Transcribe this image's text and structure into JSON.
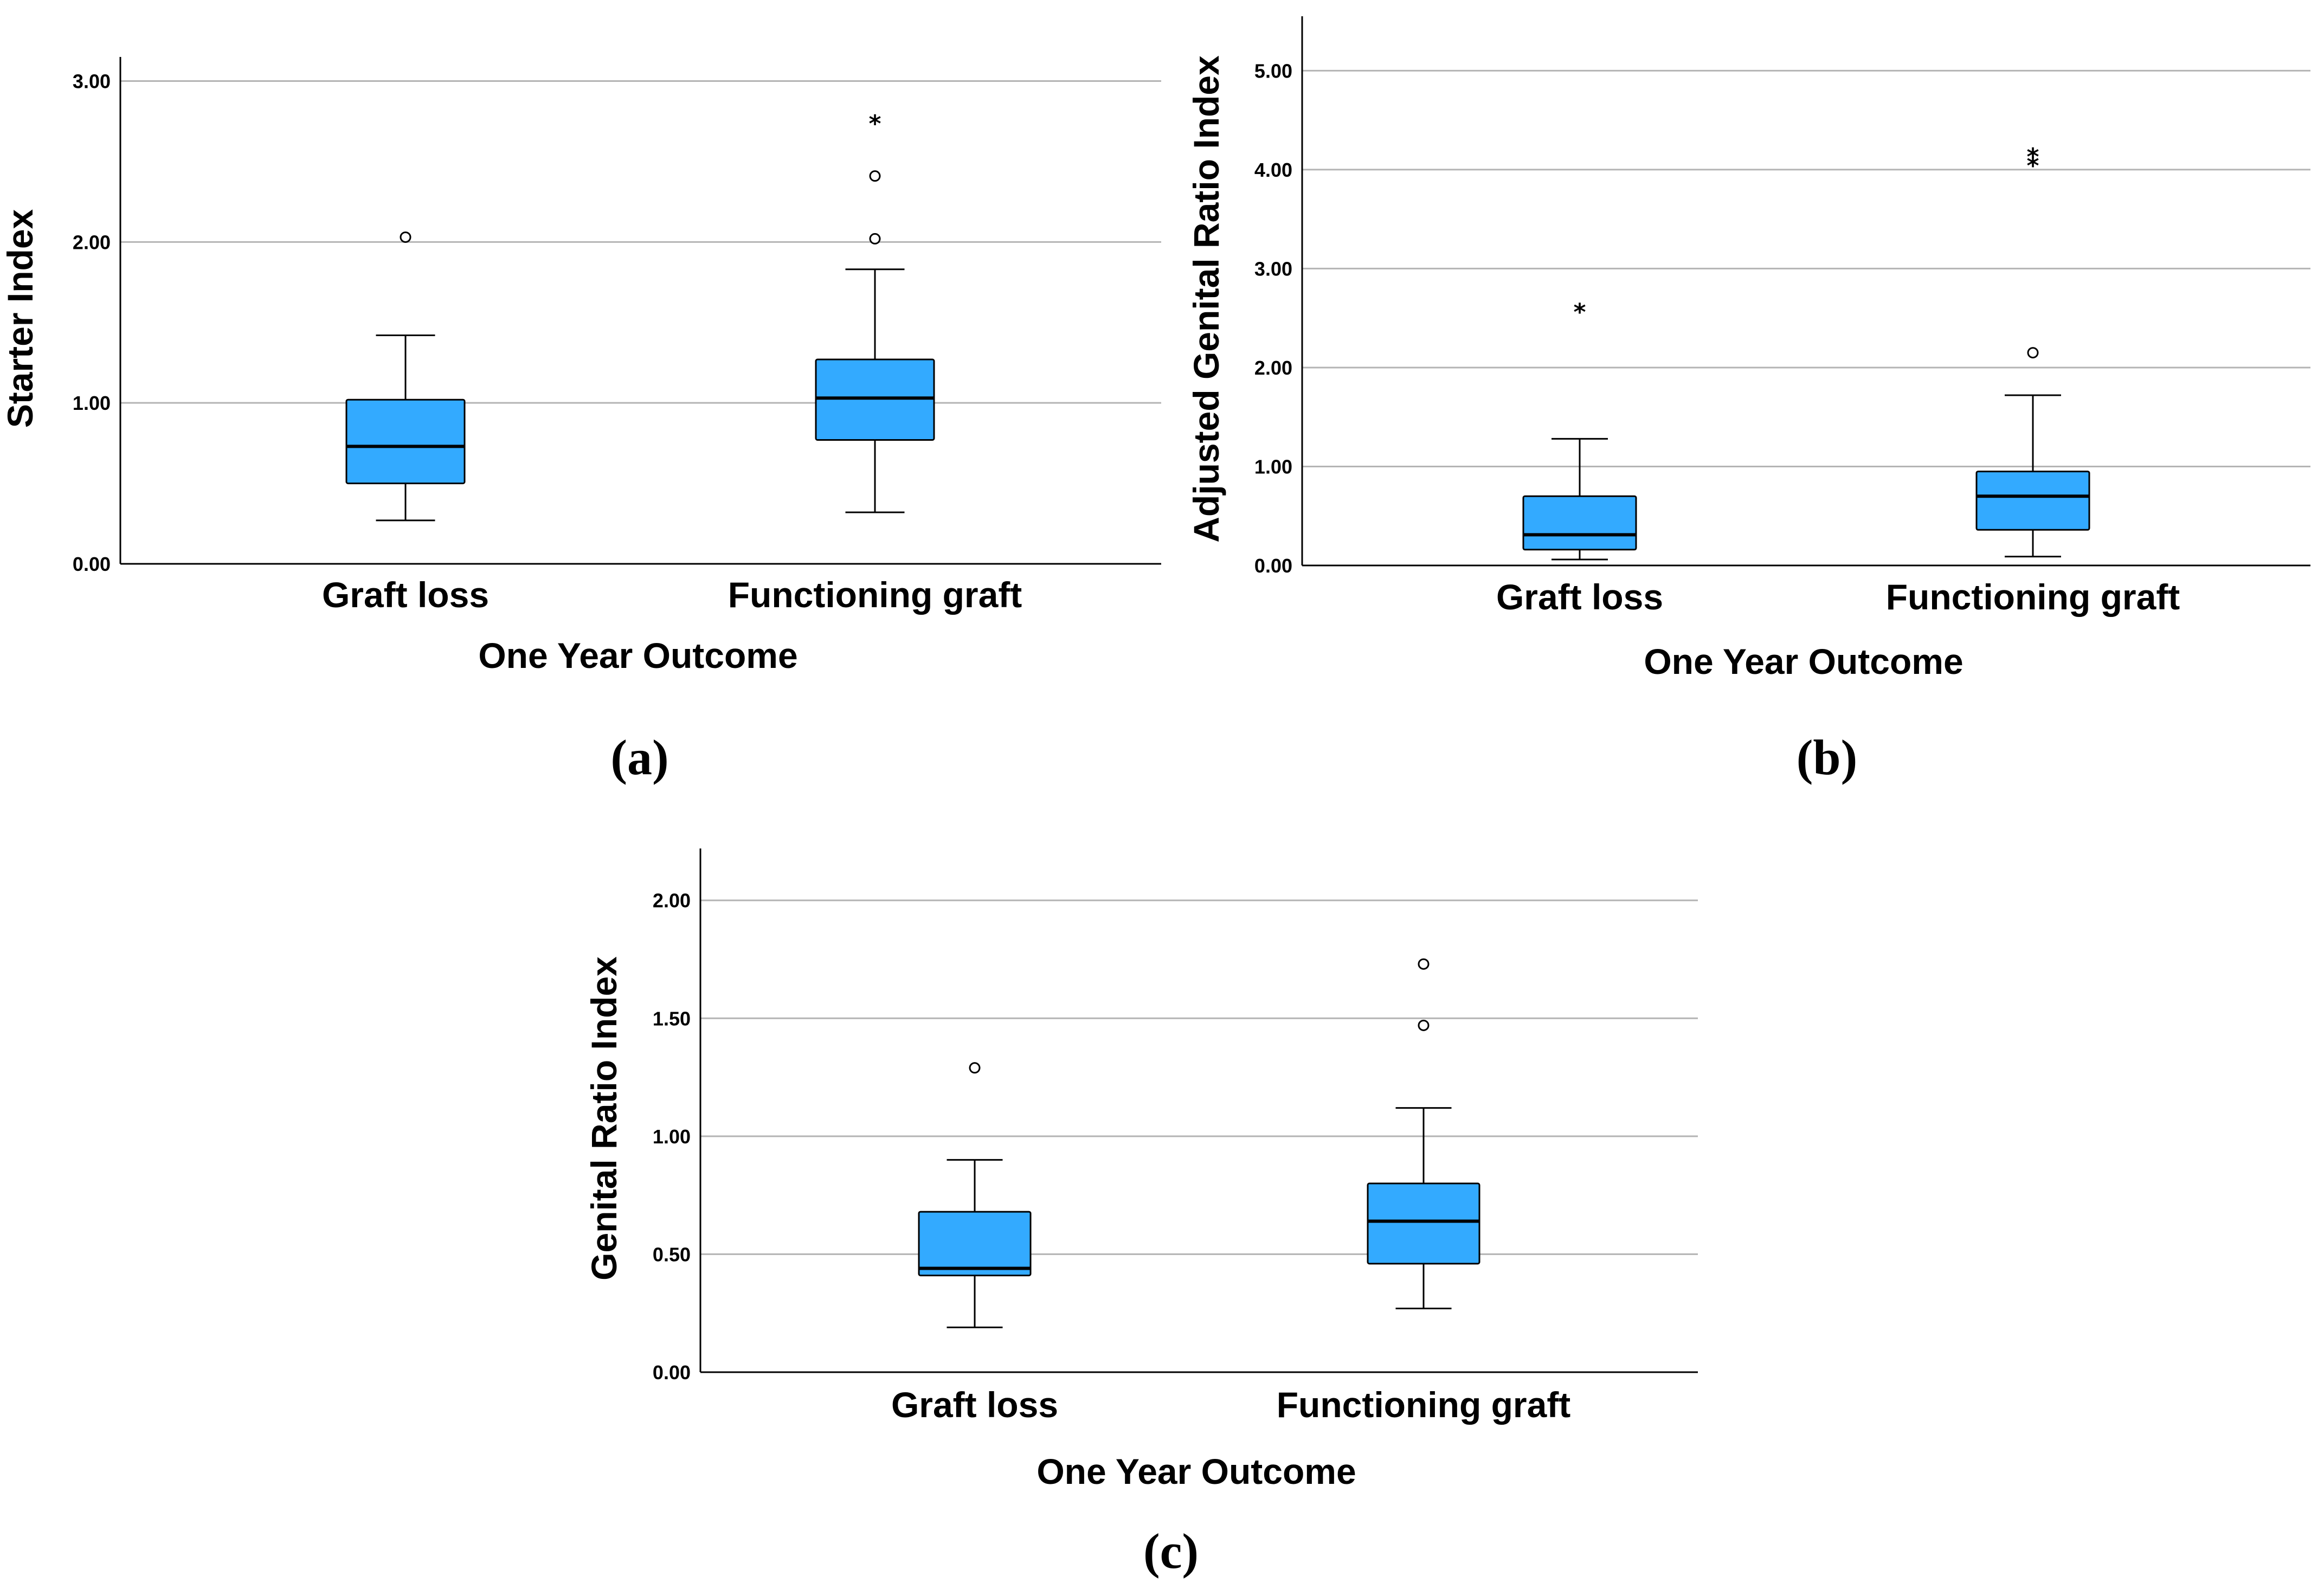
{
  "panels": [
    {
      "id": "a",
      "label": "(a)"
    },
    {
      "id": "b",
      "label": "(b)"
    },
    {
      "id": "c",
      "label": "(c)"
    }
  ],
  "chart_data": [
    {
      "type": "boxplot",
      "panel": "(a)",
      "xlabel": "One Year Outcome",
      "ylabel": "Starter Index",
      "ylim": [
        0,
        3.15
      ],
      "yticks": [
        0,
        1,
        2,
        3
      ],
      "ytick_labels": [
        "0.00",
        "1.00",
        "2.00",
        "3.00"
      ],
      "grid": "horizontal",
      "categories": [
        "Graft loss",
        "Functioning graft"
      ],
      "boxes": [
        {
          "category": "Graft loss",
          "whisker_low": 0.27,
          "q1": 0.5,
          "median": 0.73,
          "q3": 1.02,
          "whisker_high": 1.42,
          "outliers": [
            2.03
          ],
          "extremes": []
        },
        {
          "category": "Functioning graft",
          "whisker_low": 0.32,
          "q1": 0.77,
          "median": 1.03,
          "q3": 1.27,
          "whisker_high": 1.83,
          "outliers": [
            2.02,
            2.41
          ],
          "extremes": [
            2.76
          ]
        }
      ],
      "box_color": "#33AAFF"
    },
    {
      "type": "boxplot",
      "panel": "(b)",
      "xlabel": "One Year Outcome",
      "ylabel": "Adjusted Genital Ratio Index",
      "ylim": [
        0,
        5.55
      ],
      "yticks": [
        0,
        1,
        2,
        3,
        4,
        5
      ],
      "ytick_labels": [
        "0.00",
        "1.00",
        "2.00",
        "3.00",
        "4.00",
        "5.00"
      ],
      "grid": "horizontal",
      "categories": [
        "Graft loss",
        "Functioning graft"
      ],
      "boxes": [
        {
          "category": "Graft loss",
          "whisker_low": 0.06,
          "q1": 0.16,
          "median": 0.31,
          "q3": 0.7,
          "whisker_high": 1.28,
          "outliers": [],
          "extremes": [
            2.6
          ]
        },
        {
          "category": "Functioning graft",
          "whisker_low": 0.09,
          "q1": 0.36,
          "median": 0.7,
          "q3": 0.95,
          "whisker_high": 1.72,
          "outliers": [
            2.15
          ],
          "extremes": [
            4.08,
            4.17
          ]
        }
      ],
      "box_color": "#33AAFF"
    },
    {
      "type": "boxplot",
      "panel": "(c)",
      "xlabel": "One Year Outcome",
      "ylabel": "Genital Ratio Index",
      "ylim": [
        0,
        2.22
      ],
      "yticks": [
        0,
        0.5,
        1,
        1.5,
        2
      ],
      "ytick_labels": [
        "0.00",
        "0.50",
        "1.00",
        "1.50",
        "2.00"
      ],
      "grid": "horizontal",
      "categories": [
        "Graft loss",
        "Functioning graft"
      ],
      "boxes": [
        {
          "category": "Graft loss",
          "whisker_low": 0.19,
          "q1": 0.41,
          "median": 0.44,
          "q3": 0.68,
          "whisker_high": 0.9,
          "outliers": [
            1.29
          ],
          "extremes": []
        },
        {
          "category": "Functioning graft",
          "whisker_low": 0.27,
          "q1": 0.46,
          "median": 0.64,
          "q3": 0.8,
          "whisker_high": 1.12,
          "outliers": [
            1.47,
            1.73
          ],
          "extremes": []
        }
      ],
      "box_color": "#33AAFF"
    }
  ]
}
